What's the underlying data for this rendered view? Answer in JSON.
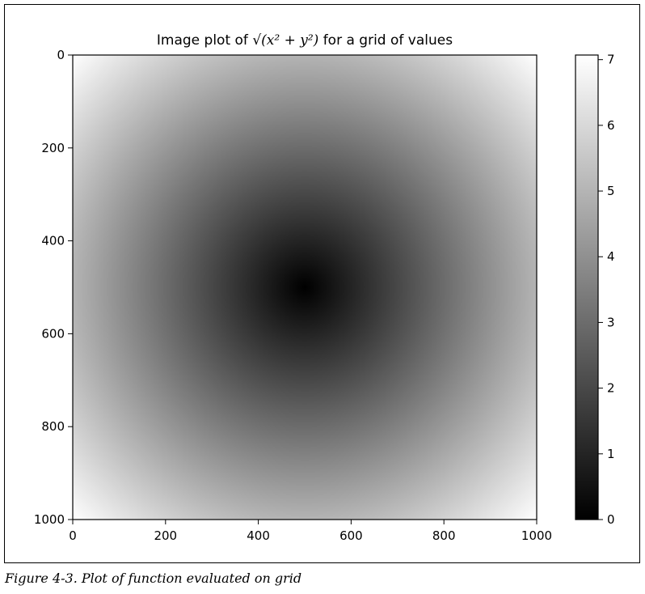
{
  "caption": "Figure 4-3. Plot of function evaluated on grid",
  "chart_data": {
    "type": "heatmap",
    "title": {
      "prefix": "Image plot of ",
      "expression": "√(x² + y²)",
      "suffix": " for a grid of values"
    },
    "function": "sqrt(x^2 + y^2)",
    "grid": {
      "x_domain": [
        -5,
        5
      ],
      "y_domain": [
        -5,
        5
      ]
    },
    "xlim": [
      0,
      1000
    ],
    "ylim": [
      1000,
      0
    ],
    "x_ticks": [
      0,
      200,
      400,
      600,
      800,
      1000
    ],
    "y_ticks": [
      0,
      200,
      400,
      600,
      800,
      1000
    ],
    "colormap": "gray",
    "colorbar": {
      "range": [
        0,
        7.07
      ],
      "ticks": [
        0,
        1,
        2,
        3,
        4,
        5,
        6,
        7
      ]
    }
  }
}
